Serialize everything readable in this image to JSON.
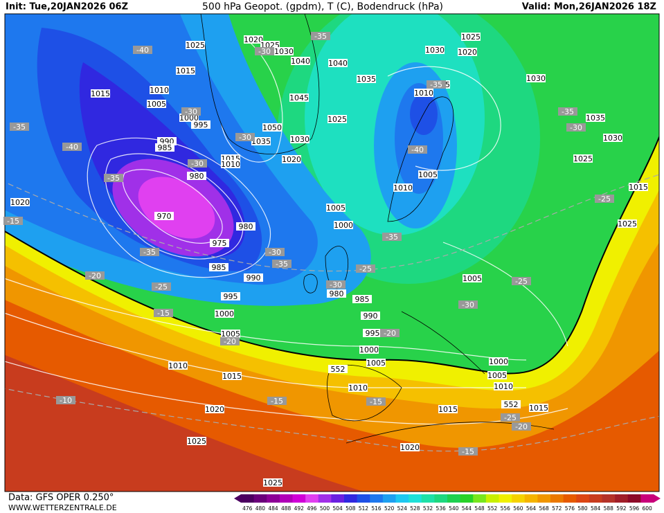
{
  "header": {
    "init": "Init: Tue,20JAN2026 06Z",
    "title": "500 hPa Geopot. (gpdm), T (C), Bodendruck (hPa)",
    "valid": "Valid: Mon,26JAN2026 18Z"
  },
  "footer": {
    "data": "Data: GFS OPER 0.250°",
    "site": "WWW.WETTERZENTRALE.DE"
  },
  "colorbar": {
    "labels": [
      "476",
      "480",
      "484",
      "488",
      "492",
      "496",
      "500",
      "504",
      "508",
      "512",
      "516",
      "520",
      "524",
      "528",
      "532",
      "536",
      "540",
      "544",
      "548",
      "552",
      "556",
      "560",
      "564",
      "568",
      "572",
      "576",
      "580",
      "584",
      "588",
      "592",
      "596",
      "600"
    ],
    "colors": [
      "#4b0060",
      "#6a007a",
      "#8c0096",
      "#b000b8",
      "#d000d8",
      "#e040f0",
      "#a030e8",
      "#6a20e0",
      "#3028e0",
      "#1e50e6",
      "#1e78ee",
      "#1ea0f0",
      "#1ec8f0",
      "#1ee0d8",
      "#1ee0a8",
      "#1ed880",
      "#1ed050",
      "#28d228",
      "#78e61e",
      "#c8f000",
      "#f0f000",
      "#f5d200",
      "#f5b400",
      "#f09600",
      "#eb7800",
      "#e65a00",
      "#dc4614",
      "#c83c1e",
      "#b43228",
      "#a01e28",
      "#8c0a28",
      "#c8007a"
    ]
  },
  "pressure_labels": [
    "1025",
    "1020",
    "1025",
    "1030",
    "1040",
    "1040",
    "1015",
    "1015",
    "1010",
    "1005",
    "1000",
    "995",
    "1045",
    "1035",
    "1025",
    "1020",
    "1030",
    "1015",
    "1010",
    "1030",
    "1050",
    "1035",
    "1030",
    "1025",
    "990",
    "985",
    "980",
    "1015",
    "1010",
    "1020",
    "1035",
    "1030",
    "1025",
    "1015",
    "1005",
    "1010",
    "1005",
    "1000",
    "970",
    "980",
    "975",
    "985",
    "990",
    "995",
    "1000",
    "1005",
    "980",
    "985",
    "990",
    "995",
    "1000",
    "1005",
    "1010",
    "1015",
    "1010",
    "1020",
    "1025",
    "1025",
    "1020",
    "1015",
    "1015",
    "1005",
    "1000",
    "1005",
    "1010",
    "1025",
    "1020"
  ],
  "temperature_labels": [
    "-35",
    "-30",
    "-40",
    "-35",
    "-40",
    "-30",
    "-30",
    "-30",
    "-35",
    "-15",
    "-35",
    "-30",
    "-35",
    "-20",
    "-25",
    "-15",
    "-30",
    "-25",
    "-35",
    "-40",
    "-35",
    "-35",
    "-30",
    "-25",
    "-25",
    "-30",
    "-20",
    "-20",
    "-15",
    "-15",
    "-10",
    "-25",
    "-20",
    "-15"
  ],
  "geopotential_labels": [
    "552",
    "552"
  ]
}
